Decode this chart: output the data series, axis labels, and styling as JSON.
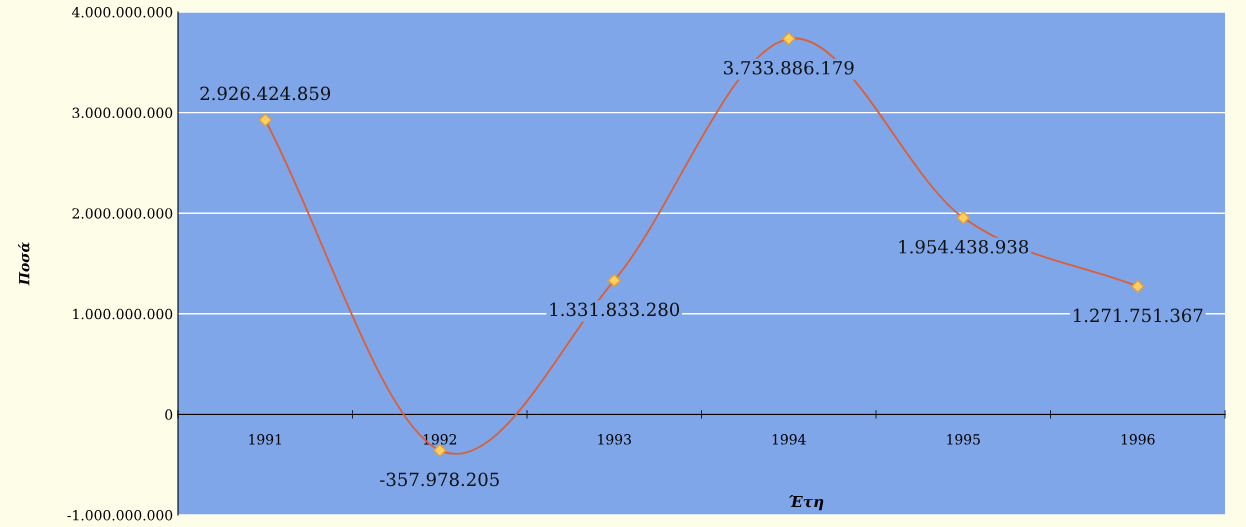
{
  "chart_data": {
    "type": "line",
    "xlabel": "Έτη",
    "ylabel": "Ποσά",
    "categories": [
      "1991",
      "1992",
      "1993",
      "1994",
      "1995",
      "1996"
    ],
    "series": [
      {
        "color": "#d9603a",
        "values": [
          2926424859,
          -357978205,
          1331833280,
          3733886179,
          1954438938,
          1271751367
        ],
        "value_labels": [
          "2.926.424.859",
          "-357.978.205",
          "1.331.833.280",
          "3.733.886.179",
          "1.954.438.938",
          "1.271.751.367"
        ]
      }
    ],
    "ylim": [
      -1000000000,
      4000000000
    ],
    "yticks": [
      {
        "value": -1000000000,
        "label": "-1.000.000.000"
      },
      {
        "value": 0,
        "label": "0"
      },
      {
        "value": 1000000000,
        "label": "1.000.000.000"
      },
      {
        "value": 2000000000,
        "label": "2.000.000.000"
      },
      {
        "value": 3000000000,
        "label": "3.000.000.000"
      },
      {
        "value": 4000000000,
        "label": "4.000.000.000"
      }
    ],
    "grid": "y",
    "marker": "diamond",
    "line_style": "solid",
    "legend": false
  }
}
